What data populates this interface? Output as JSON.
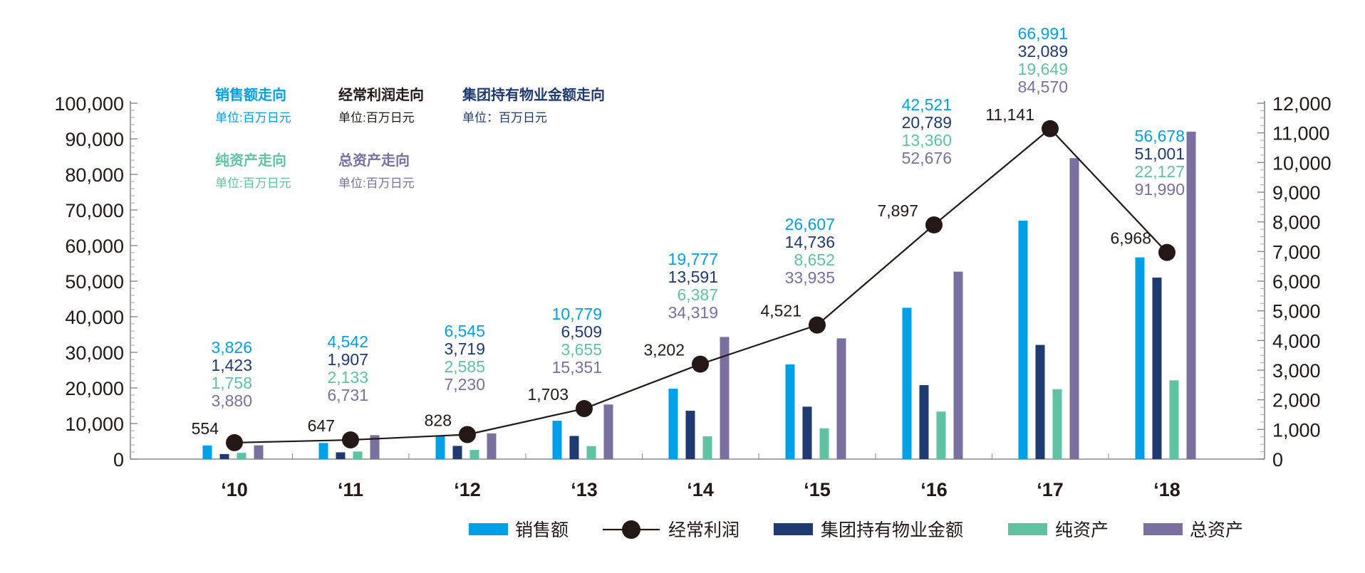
{
  "chart_data": {
    "type": "bar+line",
    "categories": [
      "‘10",
      "‘11",
      "‘12",
      "‘13",
      "‘14",
      "‘15",
      "‘16",
      "‘17",
      "‘18"
    ],
    "axes": {
      "left": {
        "ylim": [
          0,
          100000
        ],
        "ticks": [
          "0",
          "10,000",
          "20,000",
          "30,000",
          "40,000",
          "50,000",
          "60,000",
          "70,000",
          "80,000",
          "90,000",
          "100,000"
        ]
      },
      "right": {
        "ylim": [
          0,
          12000
        ],
        "ticks": [
          "0",
          "1,000",
          "2,000",
          "3,000",
          "4,000",
          "5,000",
          "6,000",
          "7,000",
          "8,000",
          "9,000",
          "10,000",
          "11,000",
          "12,000"
        ]
      }
    },
    "grid": false,
    "series": [
      {
        "name": "销售额",
        "type": "bar",
        "axis": "left",
        "color": "#00A0E9",
        "values": [
          3826,
          4542,
          6545,
          10779,
          19777,
          26607,
          42521,
          66991,
          56678
        ],
        "labels": [
          "3,826",
          "4,542",
          "6,545",
          "10,779",
          "19,777",
          "26,607",
          "42,521",
          "66,991",
          "56,678"
        ]
      },
      {
        "name": "集团持有物业金额",
        "type": "bar",
        "axis": "left",
        "color": "#1F3A70",
        "values": [
          1423,
          1907,
          3719,
          6509,
          13591,
          14736,
          20789,
          32089,
          51001
        ],
        "labels": [
          "1,423",
          "1,907",
          "3,719",
          "6,509",
          "13,591",
          "14,736",
          "20,789",
          "32,089",
          "51,001"
        ]
      },
      {
        "name": "纯资产",
        "type": "bar",
        "axis": "left",
        "color": "#5FC2A2",
        "values": [
          1758,
          2133,
          2585,
          3655,
          6387,
          8652,
          13360,
          19649,
          22127
        ],
        "labels": [
          "1,758",
          "2,133",
          "2,585",
          "3,655",
          "6,387",
          "8,652",
          "13,360",
          "19,649",
          "22,127"
        ]
      },
      {
        "name": "总资产",
        "type": "bar",
        "axis": "left",
        "color": "#7B6FA0",
        "values": [
          3880,
          6731,
          7230,
          15351,
          34319,
          33935,
          52676,
          84570,
          91990
        ],
        "labels": [
          "3,880",
          "6,731",
          "7,230",
          "15,351",
          "34,319",
          "33,935",
          "52,676",
          "84,570",
          "91,990"
        ]
      },
      {
        "name": "经常利润",
        "type": "line",
        "axis": "right",
        "color": "#231815",
        "values": [
          554,
          647,
          828,
          1703,
          3202,
          4521,
          7897,
          11141,
          6968
        ],
        "labels": [
          "554",
          "647",
          "828",
          "1,703",
          "3,202",
          "4,521",
          "7,897",
          "11,141",
          "6,968"
        ]
      }
    ],
    "header_legend": [
      {
        "title": "销售额走向",
        "unit": "单位:百万日元",
        "color": "#00A0E9"
      },
      {
        "title": "经常利润走向",
        "unit": "单位:百万日元",
        "color": "#231815"
      },
      {
        "title": "集团持有物业金额走向",
        "unit": "单位：百万日元",
        "color": "#1F3A70"
      },
      {
        "title": "纯资产走向",
        "unit": "单位:百万日元",
        "color": "#5FC2A2"
      },
      {
        "title": "总资产走向",
        "unit": "单位:百万日元",
        "color": "#7B6FA0"
      }
    ],
    "legend": [
      "销售额",
      "经常利润",
      "集团持有物业金额",
      "纯资产",
      "总资产"
    ],
    "legend_position": "bottom-right"
  }
}
